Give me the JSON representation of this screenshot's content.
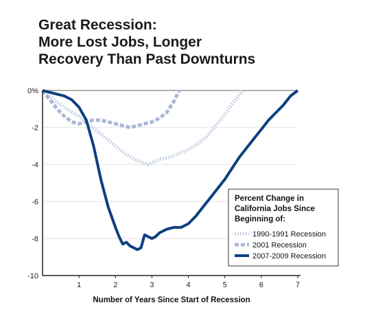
{
  "title_lines": [
    "Great Recession:",
    "More Lost Jobs, Longer",
    "Recovery Than Past Downturns"
  ],
  "colors": {
    "series_1990": "#c9d3e6",
    "series_2001": "#a9b8d4",
    "series_2007": "#0d3f80",
    "zero_line": "#999999",
    "grid": "#e3e3e3",
    "axis": "#222222"
  },
  "chart_data": {
    "type": "line",
    "title": "Great Recession: More Lost Jobs, Longer Recovery Than Past Downturns",
    "xlabel": "Number of Years Since Start of Recession",
    "ylabel": "",
    "xlim": [
      0,
      7
    ],
    "ylim": [
      -10,
      0
    ],
    "x_ticks": [
      1,
      2,
      3,
      4,
      5,
      6,
      7
    ],
    "y_ticks": [
      0,
      -2,
      -4,
      -6,
      -8,
      -10
    ],
    "y_tick_labels": [
      "0%",
      "-2",
      "-4",
      "-6",
      "-8",
      "-10"
    ],
    "grid": true,
    "legend_title": "Percent Change in California Jobs Since Beginning of:",
    "legend_position": "bottom-right",
    "series": [
      {
        "name": "1990-1991 Recession",
        "style": "dotted",
        "x": [
          0,
          0.25,
          0.5,
          0.75,
          1.0,
          1.25,
          1.5,
          1.75,
          2.0,
          2.25,
          2.5,
          2.75,
          2.9,
          3.0,
          3.25,
          3.5,
          3.75,
          4.0,
          4.25,
          4.5,
          4.75,
          5.0,
          5.25,
          5.5
        ],
        "values": [
          0,
          -0.4,
          -0.8,
          -1.1,
          -1.4,
          -1.8,
          -2.2,
          -2.6,
          -3.0,
          -3.4,
          -3.7,
          -3.9,
          -4.0,
          -3.9,
          -3.7,
          -3.6,
          -3.4,
          -3.2,
          -2.9,
          -2.5,
          -1.9,
          -1.3,
          -0.6,
          0
        ]
      },
      {
        "name": "2001 Recession",
        "style": "dashed",
        "x": [
          0,
          0.2,
          0.4,
          0.6,
          0.8,
          1.0,
          1.2,
          1.4,
          1.6,
          1.8,
          2.0,
          2.2,
          2.4,
          2.6,
          2.8,
          3.0,
          3.2,
          3.4,
          3.6,
          3.75
        ],
        "values": [
          0,
          -0.5,
          -1.0,
          -1.4,
          -1.7,
          -1.8,
          -1.7,
          -1.6,
          -1.6,
          -1.7,
          -1.8,
          -1.9,
          -2.0,
          -1.9,
          -1.8,
          -1.7,
          -1.5,
          -1.2,
          -0.6,
          0
        ]
      },
      {
        "name": "2007-2009 Recession",
        "style": "solid",
        "x": [
          0,
          0.2,
          0.4,
          0.6,
          0.8,
          1.0,
          1.2,
          1.4,
          1.6,
          1.8,
          2.0,
          2.1,
          2.2,
          2.3,
          2.4,
          2.5,
          2.6,
          2.7,
          2.8,
          2.9,
          3.0,
          3.1,
          3.2,
          3.4,
          3.6,
          3.8,
          4.0,
          4.2,
          4.4,
          4.6,
          4.8,
          5.0,
          5.2,
          5.4,
          5.6,
          5.8,
          6.0,
          6.2,
          6.4,
          6.6,
          6.8,
          7.0
        ],
        "values": [
          0,
          -0.1,
          -0.2,
          -0.3,
          -0.5,
          -0.9,
          -1.6,
          -3.0,
          -4.8,
          -6.3,
          -7.4,
          -7.9,
          -8.3,
          -8.2,
          -8.4,
          -8.5,
          -8.6,
          -8.5,
          -7.8,
          -7.9,
          -8.0,
          -7.9,
          -7.7,
          -7.5,
          -7.4,
          -7.4,
          -7.2,
          -6.8,
          -6.3,
          -5.8,
          -5.3,
          -4.8,
          -4.2,
          -3.6,
          -3.1,
          -2.6,
          -2.1,
          -1.6,
          -1.2,
          -0.8,
          -0.3,
          0
        ]
      }
    ]
  }
}
